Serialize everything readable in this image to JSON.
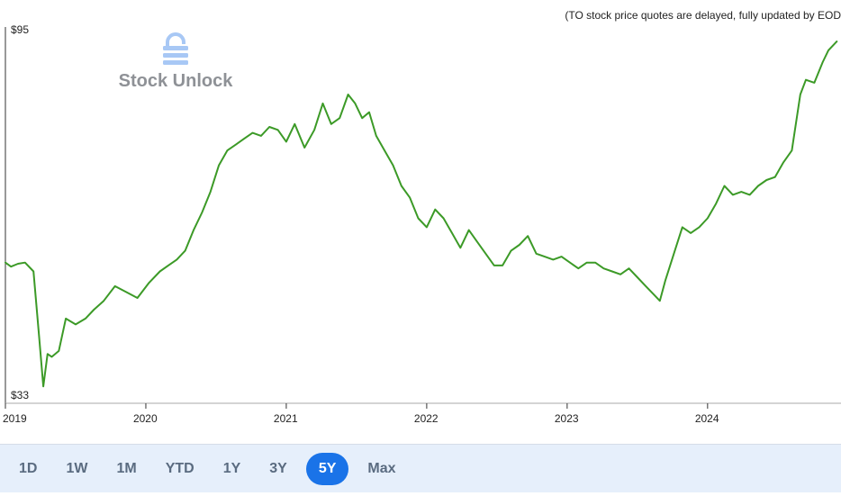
{
  "notice": "(TO stock price quotes are delayed, fully updated by EOD",
  "logo": {
    "text": "Stock Unlock",
    "icon": "lock-icon",
    "color": "#a8c8f5"
  },
  "range_buttons": [
    "1D",
    "1W",
    "1M",
    "YTD",
    "1Y",
    "3Y",
    "5Y",
    "Max"
  ],
  "active_range": "5Y",
  "colors": {
    "line": "#3c9a27",
    "accent": "#1a73e8",
    "toolbar_bg": "#e6effb"
  },
  "chart_data": {
    "type": "line",
    "title": "",
    "xlabel": "",
    "ylabel": "",
    "ylim": [
      33,
      95
    ],
    "y_tick_labels": [
      "$95",
      "$33"
    ],
    "x_tick_labels": [
      "2019",
      "2020",
      "2021",
      "2022",
      "2023",
      "2024"
    ],
    "grid": false,
    "series": [
      {
        "x": [
          2019.0,
          2019.04,
          2019.09,
          2019.14,
          2019.2,
          2019.24,
          2019.27,
          2019.3,
          2019.33,
          2019.38,
          2019.43,
          2019.5,
          2019.57,
          2019.63,
          2019.7,
          2019.78,
          2019.86,
          2019.94,
          2020.02,
          2020.1,
          2020.16,
          2020.22,
          2020.28,
          2020.34,
          2020.4,
          2020.46,
          2020.52,
          2020.58,
          2020.64,
          2020.7,
          2020.76,
          2020.82,
          2020.88,
          2020.94,
          2021.0,
          2021.06,
          2021.13,
          2021.2,
          2021.26,
          2021.32,
          2021.38,
          2021.44,
          2021.49,
          2021.54,
          2021.59,
          2021.64,
          2021.7,
          2021.76,
          2021.82,
          2021.88,
          2021.94,
          2022.0,
          2022.06,
          2022.12,
          2022.18,
          2022.24,
          2022.3,
          2022.36,
          2022.42,
          2022.48,
          2022.54,
          2022.6,
          2022.66,
          2022.72,
          2022.78,
          2022.84,
          2022.9,
          2022.96,
          2023.02,
          2023.08,
          2023.14,
          2023.2,
          2023.26,
          2023.32,
          2023.38,
          2023.44,
          2023.5,
          2023.56,
          2023.62,
          2023.66,
          2023.7,
          2023.76,
          2023.82,
          2023.88,
          2023.94,
          2024.0,
          2024.06,
          2024.12,
          2024.18,
          2024.24,
          2024.3,
          2024.36,
          2024.42,
          2024.48,
          2024.54,
          2024.6,
          2024.66,
          2024.7,
          2024.76,
          2024.82,
          2024.86,
          2024.92
        ],
        "y": [
          55.5,
          54.8,
          55.3,
          55.5,
          54.0,
          43.0,
          34.5,
          40.0,
          39.5,
          40.5,
          46.0,
          45.0,
          46.0,
          47.5,
          49.0,
          51.5,
          50.5,
          49.5,
          52.0,
          54.0,
          55.0,
          56.0,
          57.5,
          61.0,
          64.0,
          67.5,
          72.0,
          74.5,
          75.5,
          76.5,
          77.5,
          77.0,
          78.5,
          78.0,
          76.0,
          79.0,
          75.0,
          78.0,
          82.5,
          79.0,
          80.0,
          84.0,
          82.5,
          80.0,
          81.0,
          77.0,
          74.5,
          72.0,
          68.5,
          66.5,
          63.0,
          61.5,
          64.5,
          63.0,
          60.5,
          58.0,
          61.0,
          59.0,
          57.0,
          55.0,
          55.0,
          57.5,
          58.5,
          60.0,
          57.0,
          56.5,
          56.0,
          56.5,
          55.5,
          54.5,
          55.5,
          55.5,
          54.5,
          54.0,
          53.5,
          54.5,
          53.0,
          51.5,
          50.0,
          49.0,
          52.5,
          57.0,
          61.5,
          60.5,
          61.5,
          63.0,
          65.5,
          68.5,
          67.0,
          67.5,
          67.0,
          68.5,
          69.5,
          70.0,
          72.5,
          74.5,
          84.0,
          86.5,
          86.0,
          89.5,
          91.5,
          93.0
        ]
      }
    ]
  }
}
